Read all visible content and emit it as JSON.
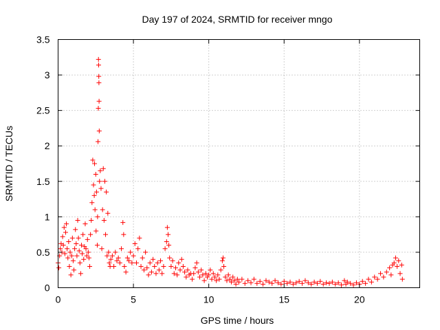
{
  "chart_data": {
    "type": "scatter",
    "title": "Day 197 of 2024, SRMTID for receiver mngo",
    "xlabel": "GPS time / hours",
    "ylabel": "SRMTID / TECUs",
    "xlim": [
      0,
      24
    ],
    "ylim": [
      0,
      3.5
    ],
    "x_ticks": [
      0,
      5,
      10,
      15,
      20
    ],
    "x_tick_labels": [
      "0",
      "5",
      "10",
      "15",
      "20"
    ],
    "y_ticks": [
      0,
      0.5,
      1,
      1.5,
      2,
      2.5,
      3,
      3.5
    ],
    "y_tick_labels": [
      "0",
      "0.5",
      "1",
      "1.5",
      "2",
      "2.5",
      "3",
      "3.5"
    ],
    "grid": true,
    "marker": "+",
    "marker_color": "#ff0000",
    "series": [
      {
        "name": "SRMTID",
        "points": [
          [
            0.0,
            0.35
          ],
          [
            0.05,
            0.28
          ],
          [
            0.1,
            0.45
          ],
          [
            0.15,
            0.55
          ],
          [
            0.2,
            0.62
          ],
          [
            0.25,
            0.5
          ],
          [
            0.3,
            0.72
          ],
          [
            0.35,
            0.6
          ],
          [
            0.4,
            0.85
          ],
          [
            0.45,
            0.48
          ],
          [
            0.5,
            0.78
          ],
          [
            0.55,
            0.9
          ],
          [
            0.6,
            0.55
          ],
          [
            0.65,
            0.42
          ],
          [
            0.7,
            0.65
          ],
          [
            0.75,
            0.3
          ],
          [
            0.8,
            0.5
          ],
          [
            0.85,
            0.18
          ],
          [
            0.9,
            0.45
          ],
          [
            0.95,
            0.7
          ],
          [
            1.0,
            0.38
          ],
          [
            1.05,
            0.25
          ],
          [
            1.1,
            0.55
          ],
          [
            1.15,
            0.82
          ],
          [
            1.2,
            0.62
          ],
          [
            1.25,
            0.45
          ],
          [
            1.3,
            0.95
          ],
          [
            1.35,
            0.7
          ],
          [
            1.4,
            0.52
          ],
          [
            1.45,
            0.35
          ],
          [
            1.5,
            0.2
          ],
          [
            1.55,
            0.6
          ],
          [
            1.6,
            0.48
          ],
          [
            1.65,
            0.75
          ],
          [
            1.7,
            0.4
          ],
          [
            1.75,
            0.58
          ],
          [
            1.8,
            0.9
          ],
          [
            1.85,
            0.55
          ],
          [
            1.9,
            0.45
          ],
          [
            1.95,
            0.68
          ],
          [
            2.0,
            0.5
          ],
          [
            2.05,
            0.42
          ],
          [
            2.1,
            0.3
          ],
          [
            2.15,
            0.75
          ],
          [
            2.2,
            0.95
          ],
          [
            2.25,
            1.2
          ],
          [
            2.3,
            1.8
          ],
          [
            2.35,
            1.45
          ],
          [
            2.4,
            1.3
          ],
          [
            2.42,
            1.75
          ],
          [
            2.45,
            1.1
          ],
          [
            2.5,
            1.6
          ],
          [
            2.52,
            0.8
          ],
          [
            2.55,
            1.35
          ],
          [
            2.6,
            0.6
          ],
          [
            2.62,
            1.0
          ],
          [
            2.65,
            2.06
          ],
          [
            2.67,
            2.53
          ],
          [
            2.68,
            3.22
          ],
          [
            2.69,
            3.14
          ],
          [
            2.7,
            2.98
          ],
          [
            2.71,
            2.89
          ],
          [
            2.72,
            2.63
          ],
          [
            2.73,
            2.21
          ],
          [
            2.75,
            1.5
          ],
          [
            2.8,
            1.65
          ],
          [
            2.85,
            1.4
          ],
          [
            2.9,
            0.55
          ],
          [
            2.95,
            1.1
          ],
          [
            3.0,
            1.68
          ],
          [
            3.05,
            0.95
          ],
          [
            3.1,
            1.5
          ],
          [
            3.15,
            0.75
          ],
          [
            3.2,
            1.35
          ],
          [
            3.25,
            0.45
          ],
          [
            3.3,
            1.05
          ],
          [
            3.35,
            0.5
          ],
          [
            3.4,
            0.35
          ],
          [
            3.45,
            0.3
          ],
          [
            3.5,
            0.4
          ],
          [
            3.6,
            0.45
          ],
          [
            3.7,
            0.3
          ],
          [
            3.8,
            0.5
          ],
          [
            3.9,
            0.38
          ],
          [
            4.0,
            0.42
          ],
          [
            4.1,
            0.35
          ],
          [
            4.2,
            0.55
          ],
          [
            4.3,
            0.92
          ],
          [
            4.35,
            0.75
          ],
          [
            4.4,
            0.3
          ],
          [
            4.5,
            0.22
          ],
          [
            4.6,
            0.42
          ],
          [
            4.7,
            0.38
          ],
          [
            4.8,
            0.5
          ],
          [
            4.9,
            0.35
          ],
          [
            5.0,
            0.45
          ],
          [
            5.1,
            0.62
          ],
          [
            5.2,
            0.35
          ],
          [
            5.3,
            0.55
          ],
          [
            5.4,
            0.7
          ],
          [
            5.5,
            0.3
          ],
          [
            5.6,
            0.42
          ],
          [
            5.7,
            0.25
          ],
          [
            5.8,
            0.5
          ],
          [
            5.9,
            0.28
          ],
          [
            6.0,
            0.18
          ],
          [
            6.1,
            0.35
          ],
          [
            6.2,
            0.22
          ],
          [
            6.3,
            0.4
          ],
          [
            6.4,
            0.3
          ],
          [
            6.5,
            0.2
          ],
          [
            6.6,
            0.35
          ],
          [
            6.7,
            0.25
          ],
          [
            6.8,
            0.38
          ],
          [
            6.9,
            0.2
          ],
          [
            7.0,
            0.3
          ],
          [
            7.1,
            0.55
          ],
          [
            7.2,
            0.65
          ],
          [
            7.25,
            0.85
          ],
          [
            7.3,
            0.75
          ],
          [
            7.35,
            0.6
          ],
          [
            7.4,
            0.42
          ],
          [
            7.5,
            0.3
          ],
          [
            7.6,
            0.38
          ],
          [
            7.7,
            0.2
          ],
          [
            7.8,
            0.28
          ],
          [
            7.9,
            0.18
          ],
          [
            8.0,
            0.35
          ],
          [
            8.1,
            0.25
          ],
          [
            8.2,
            0.4
          ],
          [
            8.3,
            0.3
          ],
          [
            8.4,
            0.22
          ],
          [
            8.5,
            0.15
          ],
          [
            8.6,
            0.25
          ],
          [
            8.7,
            0.18
          ],
          [
            8.8,
            0.2
          ],
          [
            8.9,
            0.12
          ],
          [
            9.0,
            0.2
          ],
          [
            9.1,
            0.28
          ],
          [
            9.2,
            0.35
          ],
          [
            9.3,
            0.22
          ],
          [
            9.4,
            0.15
          ],
          [
            9.5,
            0.25
          ],
          [
            9.6,
            0.18
          ],
          [
            9.7,
            0.1
          ],
          [
            9.8,
            0.2
          ],
          [
            9.9,
            0.15
          ],
          [
            10.0,
            0.18
          ],
          [
            10.1,
            0.25
          ],
          [
            10.2,
            0.12
          ],
          [
            10.3,
            0.2
          ],
          [
            10.4,
            0.15
          ],
          [
            10.5,
            0.1
          ],
          [
            10.6,
            0.18
          ],
          [
            10.7,
            0.12
          ],
          [
            10.8,
            0.25
          ],
          [
            10.9,
            0.38
          ],
          [
            10.95,
            0.42
          ],
          [
            11.0,
            0.3
          ],
          [
            11.1,
            0.15
          ],
          [
            11.2,
            0.1
          ],
          [
            11.3,
            0.18
          ],
          [
            11.4,
            0.12
          ],
          [
            11.5,
            0.08
          ],
          [
            11.6,
            0.15
          ],
          [
            11.7,
            0.1
          ],
          [
            11.8,
            0.05
          ],
          [
            11.9,
            0.12
          ],
          [
            12.0,
            0.08
          ],
          [
            12.2,
            0.12
          ],
          [
            12.4,
            0.06
          ],
          [
            12.6,
            0.1
          ],
          [
            12.8,
            0.07
          ],
          [
            13.0,
            0.12
          ],
          [
            13.2,
            0.06
          ],
          [
            13.4,
            0.09
          ],
          [
            13.6,
            0.05
          ],
          [
            13.8,
            0.1
          ],
          [
            14.0,
            0.08
          ],
          [
            14.2,
            0.06
          ],
          [
            14.4,
            0.1
          ],
          [
            14.6,
            0.07
          ],
          [
            14.8,
            0.05
          ],
          [
            15.0,
            0.09
          ],
          [
            15.2,
            0.06
          ],
          [
            15.4,
            0.08
          ],
          [
            15.6,
            0.05
          ],
          [
            15.8,
            0.07
          ],
          [
            16.0,
            0.09
          ],
          [
            16.2,
            0.06
          ],
          [
            16.4,
            0.1
          ],
          [
            16.6,
            0.07
          ],
          [
            16.8,
            0.05
          ],
          [
            17.0,
            0.08
          ],
          [
            17.2,
            0.06
          ],
          [
            17.4,
            0.09
          ],
          [
            17.6,
            0.05
          ],
          [
            17.8,
            0.07
          ],
          [
            18.0,
            0.06
          ],
          [
            18.2,
            0.08
          ],
          [
            18.4,
            0.05
          ],
          [
            18.6,
            0.07
          ],
          [
            18.8,
            0.04
          ],
          [
            19.0,
            0.1
          ],
          [
            19.1,
            0.05
          ],
          [
            19.2,
            0.08
          ],
          [
            19.4,
            0.06
          ],
          [
            19.6,
            0.04
          ],
          [
            19.8,
            0.07
          ],
          [
            20.0,
            0.05
          ],
          [
            20.2,
            0.09
          ],
          [
            20.4,
            0.06
          ],
          [
            20.6,
            0.12
          ],
          [
            20.8,
            0.08
          ],
          [
            21.0,
            0.15
          ],
          [
            21.2,
            0.12
          ],
          [
            21.4,
            0.2
          ],
          [
            21.6,
            0.15
          ],
          [
            21.8,
            0.22
          ],
          [
            22.0,
            0.28
          ],
          [
            22.1,
            0.18
          ],
          [
            22.2,
            0.32
          ],
          [
            22.3,
            0.35
          ],
          [
            22.4,
            0.42
          ],
          [
            22.5,
            0.3
          ],
          [
            22.6,
            0.38
          ],
          [
            22.7,
            0.2
          ],
          [
            22.8,
            0.32
          ],
          [
            22.85,
            0.12
          ]
        ]
      }
    ]
  }
}
